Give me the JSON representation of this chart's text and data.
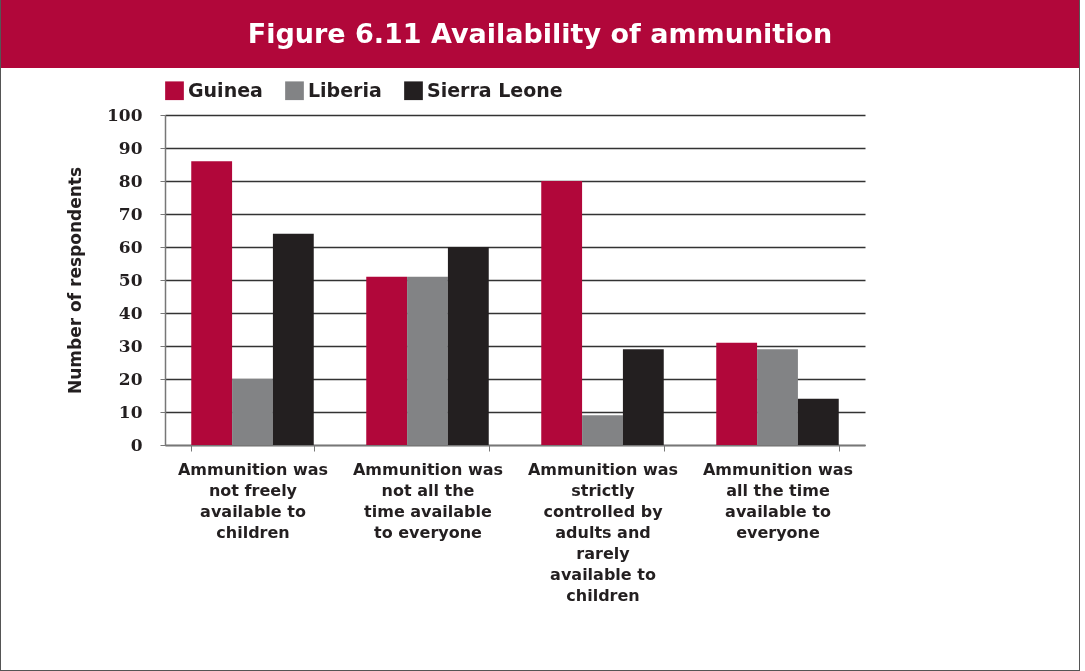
{
  "chart_data": {
    "type": "bar",
    "title": "Figure 6.11 Availability of ammunition",
    "ylabel": "Number of respondents",
    "categories": [
      "Ammunition was not freely available to children",
      "Ammunition was not all the time available to everyone",
      "Ammunition was strictly controlled by adults and rarely available to children",
      "Ammunition was all the time available to everyone"
    ],
    "series": [
      {
        "name": "Guinea",
        "color": "#b1073a",
        "values": [
          86,
          51,
          80,
          31
        ]
      },
      {
        "name": "Liberia",
        "color": "#828385",
        "values": [
          20,
          51,
          9,
          29
        ]
      },
      {
        "name": "Sierra Leone",
        "color": "#231f20",
        "values": [
          64,
          60,
          29,
          14
        ]
      }
    ],
    "ylim": [
      0,
      100
    ],
    "yticks": [
      0,
      10,
      20,
      30,
      40,
      50,
      60,
      70,
      80,
      90,
      100
    ],
    "grid": "y",
    "legend": "top left"
  }
}
